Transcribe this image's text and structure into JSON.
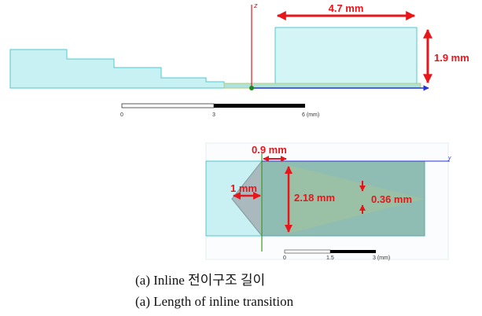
{
  "top_view": {
    "axis_label": "z",
    "length_label": "4.7 mm",
    "height_label": "1.9 mm",
    "scale": [
      "0",
      "3",
      "6 (mm)"
    ]
  },
  "bottom_view": {
    "axis_label": "y",
    "offset_label": "0.9 mm",
    "taper_label": "1 mm",
    "width_label": "2.18 mm",
    "gap_label": "0.36 mm",
    "scale": [
      "0",
      "1.5",
      "3 (mm)"
    ]
  },
  "caption": {
    "korean": "(a) Inline 전이구조 길이",
    "english": "(a) Length of inline transition"
  }
}
